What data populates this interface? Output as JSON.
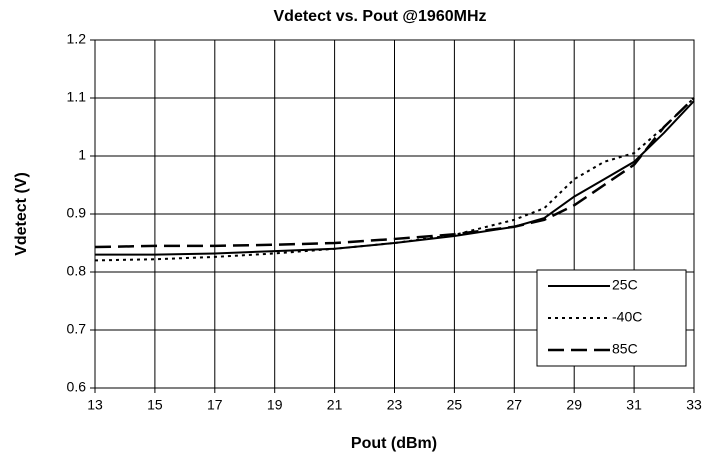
{
  "chart_data": {
    "type": "line",
    "title": "Vdetect vs. Pout @1960MHz",
    "xlabel": "Pout (dBm)",
    "ylabel": "Vdetect (V)",
    "x": [
      13,
      15,
      17,
      19,
      21,
      23,
      25,
      27,
      28,
      29,
      30,
      31,
      32,
      33
    ],
    "series": [
      {
        "name": "25C",
        "color": "#000000",
        "style": "solid",
        "values": [
          0.83,
          0.83,
          0.832,
          0.836,
          0.84,
          0.85,
          0.862,
          0.878,
          0.893,
          0.93,
          0.96,
          0.99,
          1.04,
          1.095
        ]
      },
      {
        "name": "-40C",
        "color": "#000000",
        "style": "dotted",
        "values": [
          0.82,
          0.822,
          0.826,
          0.832,
          0.84,
          0.85,
          0.864,
          0.89,
          0.91,
          0.96,
          0.99,
          1.005,
          1.05,
          1.1
        ]
      },
      {
        "name": "85C",
        "color": "#000000",
        "style": "dashed",
        "values": [
          0.843,
          0.845,
          0.845,
          0.847,
          0.85,
          0.857,
          0.865,
          0.878,
          0.89,
          0.915,
          0.95,
          0.985,
          1.05,
          1.1
        ]
      }
    ],
    "xlim": [
      13,
      33
    ],
    "xticks": [
      13,
      15,
      17,
      19,
      21,
      23,
      25,
      27,
      29,
      31,
      33
    ],
    "ylim": [
      0.6,
      1.2
    ],
    "yticks": [
      0.6,
      0.7,
      0.8,
      0.9,
      1,
      1.1,
      1.2
    ],
    "grid": true,
    "legend": "lower right"
  }
}
